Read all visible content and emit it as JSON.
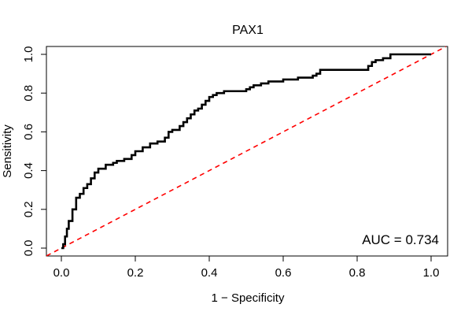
{
  "chart_data": {
    "type": "line",
    "title": "PAX1",
    "xlabel": "1 − Specificity",
    "ylabel": "Sensitivity",
    "xlim": [
      0.0,
      1.0
    ],
    "ylim": [
      0.0,
      1.0
    ],
    "x_ticks": [
      0.0,
      0.2,
      0.4,
      0.6,
      0.8,
      1.0
    ],
    "y_ticks": [
      0.0,
      0.2,
      0.4,
      0.6,
      0.8,
      1.0
    ],
    "x_tick_labels": [
      "0.0",
      "0.2",
      "0.4",
      "0.6",
      "0.8",
      "1.0"
    ],
    "y_tick_labels": [
      "0.0",
      "0.2",
      "0.4",
      "0.6",
      "0.8",
      "1.0"
    ],
    "grid": false,
    "annotation": "AUC = 0.734",
    "colors": {
      "roc_curve": "#000000",
      "reference_line": "#ff0000"
    },
    "series": [
      {
        "role": "roc",
        "style": "step",
        "x": [
          0.0,
          0.005,
          0.01,
          0.015,
          0.02,
          0.03,
          0.04,
          0.05,
          0.06,
          0.07,
          0.08,
          0.09,
          0.1,
          0.12,
          0.14,
          0.15,
          0.17,
          0.19,
          0.2,
          0.22,
          0.24,
          0.26,
          0.28,
          0.29,
          0.3,
          0.32,
          0.33,
          0.34,
          0.35,
          0.36,
          0.37,
          0.38,
          0.39,
          0.4,
          0.41,
          0.42,
          0.44,
          0.46,
          0.5,
          0.51,
          0.52,
          0.54,
          0.56,
          0.6,
          0.64,
          0.68,
          0.69,
          0.7,
          0.75,
          0.8,
          0.83,
          0.84,
          0.85,
          0.87,
          0.89,
          0.9,
          0.95,
          1.0
        ],
        "y": [
          0.0,
          0.02,
          0.06,
          0.1,
          0.14,
          0.2,
          0.26,
          0.28,
          0.31,
          0.33,
          0.36,
          0.39,
          0.41,
          0.43,
          0.44,
          0.45,
          0.46,
          0.48,
          0.5,
          0.52,
          0.54,
          0.55,
          0.57,
          0.6,
          0.61,
          0.63,
          0.65,
          0.67,
          0.69,
          0.71,
          0.72,
          0.74,
          0.76,
          0.78,
          0.79,
          0.8,
          0.81,
          0.81,
          0.82,
          0.83,
          0.84,
          0.85,
          0.86,
          0.87,
          0.88,
          0.89,
          0.9,
          0.92,
          0.92,
          0.92,
          0.94,
          0.96,
          0.97,
          0.98,
          1.0,
          1.0,
          1.0,
          1.0
        ]
      },
      {
        "role": "reference",
        "style": "dashed",
        "x": [
          0.0,
          1.0
        ],
        "y": [
          0.0,
          1.0
        ]
      }
    ]
  }
}
